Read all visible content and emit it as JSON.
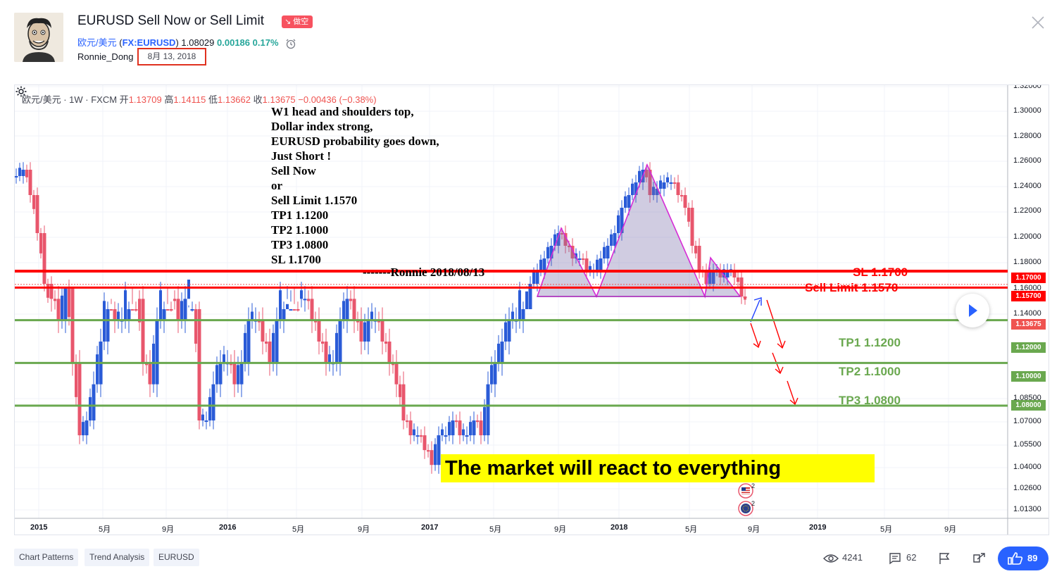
{
  "header": {
    "title": "EURUSD Sell Now or Sell Limit",
    "badge": "做空",
    "symbol_name": "欧元/美元",
    "symbol_code": "FX:EURUSD",
    "price": "1.08029",
    "change": "0.00186",
    "change_pct": "0.17%",
    "author": "Ronnie_Dong",
    "date": "8月 13, 2018"
  },
  "chart": {
    "legend_prefix": "欧元/美元 · 1W · FXCM",
    "open_label": "开",
    "open": "1.13709",
    "high_label": "高",
    "high": "1.14115",
    "low_label": "低",
    "low": "1.13662",
    "close_label": "收",
    "close": "1.13675",
    "change": "−0.00436 (−0.38%)",
    "note_lines": [
      "W1  head and shoulders top,",
      "Dollar index strong,",
      "EURUSD  probability goes down,",
      "Just Short !",
      "Sell Now",
      "or",
      "Sell Limit 1.1570",
      "TP1 1.1200",
      "TP2 1.1000",
      "TP3 1.0800",
      "SL   1.1700"
    ],
    "signature": "-------Ronnie 2018/08/13",
    "level_labels": {
      "sl": "SL  1.1700",
      "sell_limit": "Sell Limit 1.1570",
      "tp1": "TP1  1.1200",
      "tp2": "TP2  1.1000",
      "tp3": "TP3  1.0800"
    },
    "price_tags": {
      "sl": "1.17000",
      "sell_limit": "1.15700",
      "last": "1.13675",
      "tp1": "1.12000",
      "tp2": "1.10000",
      "tp3": "1.08000"
    },
    "price_axis": [
      "1.32000",
      "1.30000",
      "1.28000",
      "1.26000",
      "1.24000",
      "1.22000",
      "1.20000",
      "1.18000",
      "1.16000",
      "1.14000",
      "1.08500",
      "1.07000",
      "1.05500",
      "1.04000",
      "1.02600",
      "1.01300"
    ],
    "time_axis": [
      "2015",
      "5月",
      "9月",
      "2016",
      "5月",
      "9月",
      "2017",
      "5月",
      "9月",
      "2018",
      "5月",
      "9月",
      "2019",
      "5月",
      "9月"
    ],
    "banner": "The market will react to everything",
    "event_count_1": "2",
    "event_count_2": "2",
    "colors": {
      "up": "#2a5bd7",
      "down": "#e8566c",
      "sl": "#ff0000",
      "tp": "#6aa84f",
      "pattern": "#d62bd6"
    }
  },
  "footer": {
    "tags": [
      "Chart Patterns",
      "Trend Analysis",
      "EURUSD"
    ],
    "views": "4241",
    "comments": "62",
    "likes": "89"
  }
}
